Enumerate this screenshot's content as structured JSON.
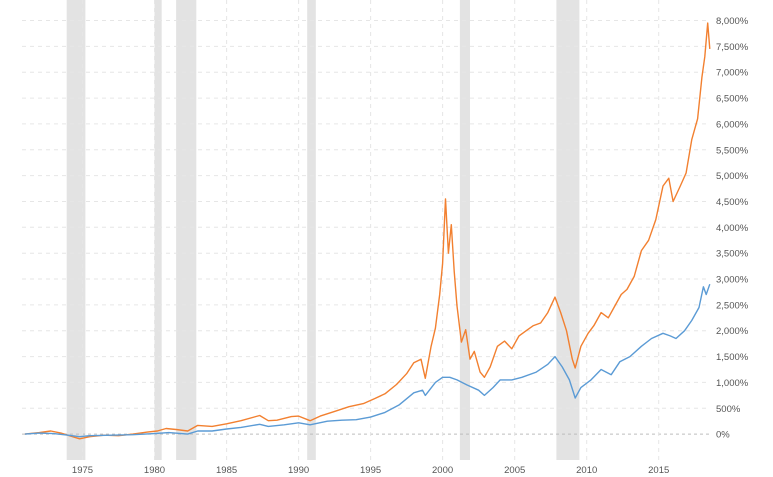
{
  "chart_data": {
    "type": "line",
    "title": "",
    "xlabel": "",
    "ylabel": "",
    "xlim": [
      1970.8,
      2018.7
    ],
    "ylim": [
      -500,
      8300
    ],
    "grid": true,
    "y_axis_position": "right",
    "x_ticks": [
      1975,
      1980,
      1985,
      1990,
      1995,
      2000,
      2005,
      2010,
      2015
    ],
    "x_tick_labels": [
      "1975",
      "1980",
      "1985",
      "1990",
      "1995",
      "2000",
      "2005",
      "2010",
      "2015"
    ],
    "y_ticks": [
      0,
      500,
      1000,
      1500,
      2000,
      2500,
      3000,
      3500,
      4000,
      4500,
      5000,
      5500,
      6000,
      6500,
      7000,
      7500,
      8000
    ],
    "y_tick_labels": [
      "0%",
      "500%",
      "1,000%",
      "1,500%",
      "2,000%",
      "2,500%",
      "3,000%",
      "3,500%",
      "4,000%",
      "4,500%",
      "5,000%",
      "5,500%",
      "6,000%",
      "6,500%",
      "7,000%",
      "7,500%",
      "8,000%"
    ],
    "shaded_periods": [
      [
        1973.9,
        1975.2
      ],
      [
        1980.0,
        1980.5
      ],
      [
        1981.5,
        1982.9
      ],
      [
        1990.6,
        1991.2
      ],
      [
        2001.2,
        2001.9
      ],
      [
        2007.9,
        2009.5
      ]
    ],
    "series": [
      {
        "color": "#f28030",
        "points": [
          [
            1971.0,
            0
          ],
          [
            1972.0,
            30
          ],
          [
            1972.8,
            60
          ],
          [
            1973.5,
            20
          ],
          [
            1974.2,
            -40
          ],
          [
            1974.8,
            -90
          ],
          [
            1975.5,
            -50
          ],
          [
            1976.5,
            -20
          ],
          [
            1977.5,
            -30
          ],
          [
            1978.5,
            0
          ],
          [
            1979.5,
            40
          ],
          [
            1980.2,
            60
          ],
          [
            1980.8,
            110
          ],
          [
            1981.5,
            90
          ],
          [
            1982.3,
            60
          ],
          [
            1983.0,
            170
          ],
          [
            1984.0,
            150
          ],
          [
            1985.0,
            200
          ],
          [
            1986.0,
            260
          ],
          [
            1987.3,
            360
          ],
          [
            1987.9,
            260
          ],
          [
            1988.5,
            270
          ],
          [
            1989.5,
            340
          ],
          [
            1990.0,
            350
          ],
          [
            1990.8,
            260
          ],
          [
            1991.5,
            350
          ],
          [
            1992.5,
            440
          ],
          [
            1993.5,
            530
          ],
          [
            1994.5,
            590
          ],
          [
            1995.3,
            690
          ],
          [
            1996.0,
            780
          ],
          [
            1996.8,
            960
          ],
          [
            1997.5,
            1170
          ],
          [
            1998.0,
            1380
          ],
          [
            1998.5,
            1450
          ],
          [
            1998.8,
            1080
          ],
          [
            1999.2,
            1700
          ],
          [
            1999.5,
            2050
          ],
          [
            1999.8,
            2700
          ],
          [
            2000.0,
            3300
          ],
          [
            2000.2,
            4550
          ],
          [
            2000.4,
            3500
          ],
          [
            2000.6,
            4050
          ],
          [
            2000.8,
            3150
          ],
          [
            2001.0,
            2480
          ],
          [
            2001.3,
            1780
          ],
          [
            2001.6,
            2020
          ],
          [
            2001.9,
            1450
          ],
          [
            2002.2,
            1600
          ],
          [
            2002.6,
            1200
          ],
          [
            2002.9,
            1100
          ],
          [
            2003.3,
            1300
          ],
          [
            2003.8,
            1700
          ],
          [
            2004.3,
            1800
          ],
          [
            2004.8,
            1650
          ],
          [
            2005.3,
            1900
          ],
          [
            2005.8,
            2000
          ],
          [
            2006.3,
            2100
          ],
          [
            2006.8,
            2150
          ],
          [
            2007.3,
            2350
          ],
          [
            2007.8,
            2650
          ],
          [
            2008.2,
            2350
          ],
          [
            2008.6,
            2000
          ],
          [
            2009.0,
            1450
          ],
          [
            2009.2,
            1280
          ],
          [
            2009.6,
            1700
          ],
          [
            2010.1,
            1950
          ],
          [
            2010.5,
            2100
          ],
          [
            2011.0,
            2350
          ],
          [
            2011.5,
            2250
          ],
          [
            2011.9,
            2450
          ],
          [
            2012.4,
            2700
          ],
          [
            2012.8,
            2800
          ],
          [
            2013.3,
            3050
          ],
          [
            2013.8,
            3550
          ],
          [
            2014.3,
            3750
          ],
          [
            2014.8,
            4150
          ],
          [
            2015.3,
            4800
          ],
          [
            2015.7,
            4950
          ],
          [
            2016.0,
            4500
          ],
          [
            2016.5,
            4800
          ],
          [
            2016.9,
            5050
          ],
          [
            2017.3,
            5700
          ],
          [
            2017.7,
            6100
          ],
          [
            2018.0,
            6900
          ],
          [
            2018.2,
            7300
          ],
          [
            2018.4,
            7950
          ],
          [
            2018.55,
            7450
          ]
        ]
      },
      {
        "color": "#5b9bd5",
        "points": [
          [
            1971.0,
            0
          ],
          [
            1972.0,
            20
          ],
          [
            1973.0,
            10
          ],
          [
            1974.0,
            -20
          ],
          [
            1974.8,
            -50
          ],
          [
            1975.5,
            -30
          ],
          [
            1977.0,
            -20
          ],
          [
            1978.5,
            -10
          ],
          [
            1980.0,
            10
          ],
          [
            1981.0,
            30
          ],
          [
            1982.3,
            0
          ],
          [
            1983.0,
            60
          ],
          [
            1984.0,
            60
          ],
          [
            1985.0,
            100
          ],
          [
            1986.0,
            130
          ],
          [
            1987.3,
            190
          ],
          [
            1987.9,
            150
          ],
          [
            1989.0,
            180
          ],
          [
            1990.0,
            220
          ],
          [
            1990.8,
            180
          ],
          [
            1992.0,
            250
          ],
          [
            1993.0,
            270
          ],
          [
            1994.0,
            280
          ],
          [
            1995.0,
            330
          ],
          [
            1996.0,
            420
          ],
          [
            1997.0,
            570
          ],
          [
            1998.0,
            800
          ],
          [
            1998.6,
            850
          ],
          [
            1998.8,
            750
          ],
          [
            1999.5,
            1000
          ],
          [
            2000.0,
            1100
          ],
          [
            2000.5,
            1100
          ],
          [
            2001.0,
            1050
          ],
          [
            2001.7,
            950
          ],
          [
            2002.5,
            850
          ],
          [
            2002.9,
            750
          ],
          [
            2003.5,
            900
          ],
          [
            2004.0,
            1050
          ],
          [
            2004.8,
            1050
          ],
          [
            2005.5,
            1100
          ],
          [
            2006.5,
            1200
          ],
          [
            2007.3,
            1350
          ],
          [
            2007.8,
            1500
          ],
          [
            2008.3,
            1300
          ],
          [
            2008.8,
            1050
          ],
          [
            2009.2,
            700
          ],
          [
            2009.6,
            900
          ],
          [
            2010.3,
            1050
          ],
          [
            2011.0,
            1250
          ],
          [
            2011.7,
            1150
          ],
          [
            2012.3,
            1400
          ],
          [
            2013.0,
            1500
          ],
          [
            2013.8,
            1700
          ],
          [
            2014.5,
            1850
          ],
          [
            2015.3,
            1950
          ],
          [
            2015.8,
            1900
          ],
          [
            2016.2,
            1850
          ],
          [
            2016.8,
            2000
          ],
          [
            2017.3,
            2200
          ],
          [
            2017.8,
            2450
          ],
          [
            2018.1,
            2850
          ],
          [
            2018.3,
            2700
          ],
          [
            2018.55,
            2900
          ]
        ]
      }
    ]
  }
}
